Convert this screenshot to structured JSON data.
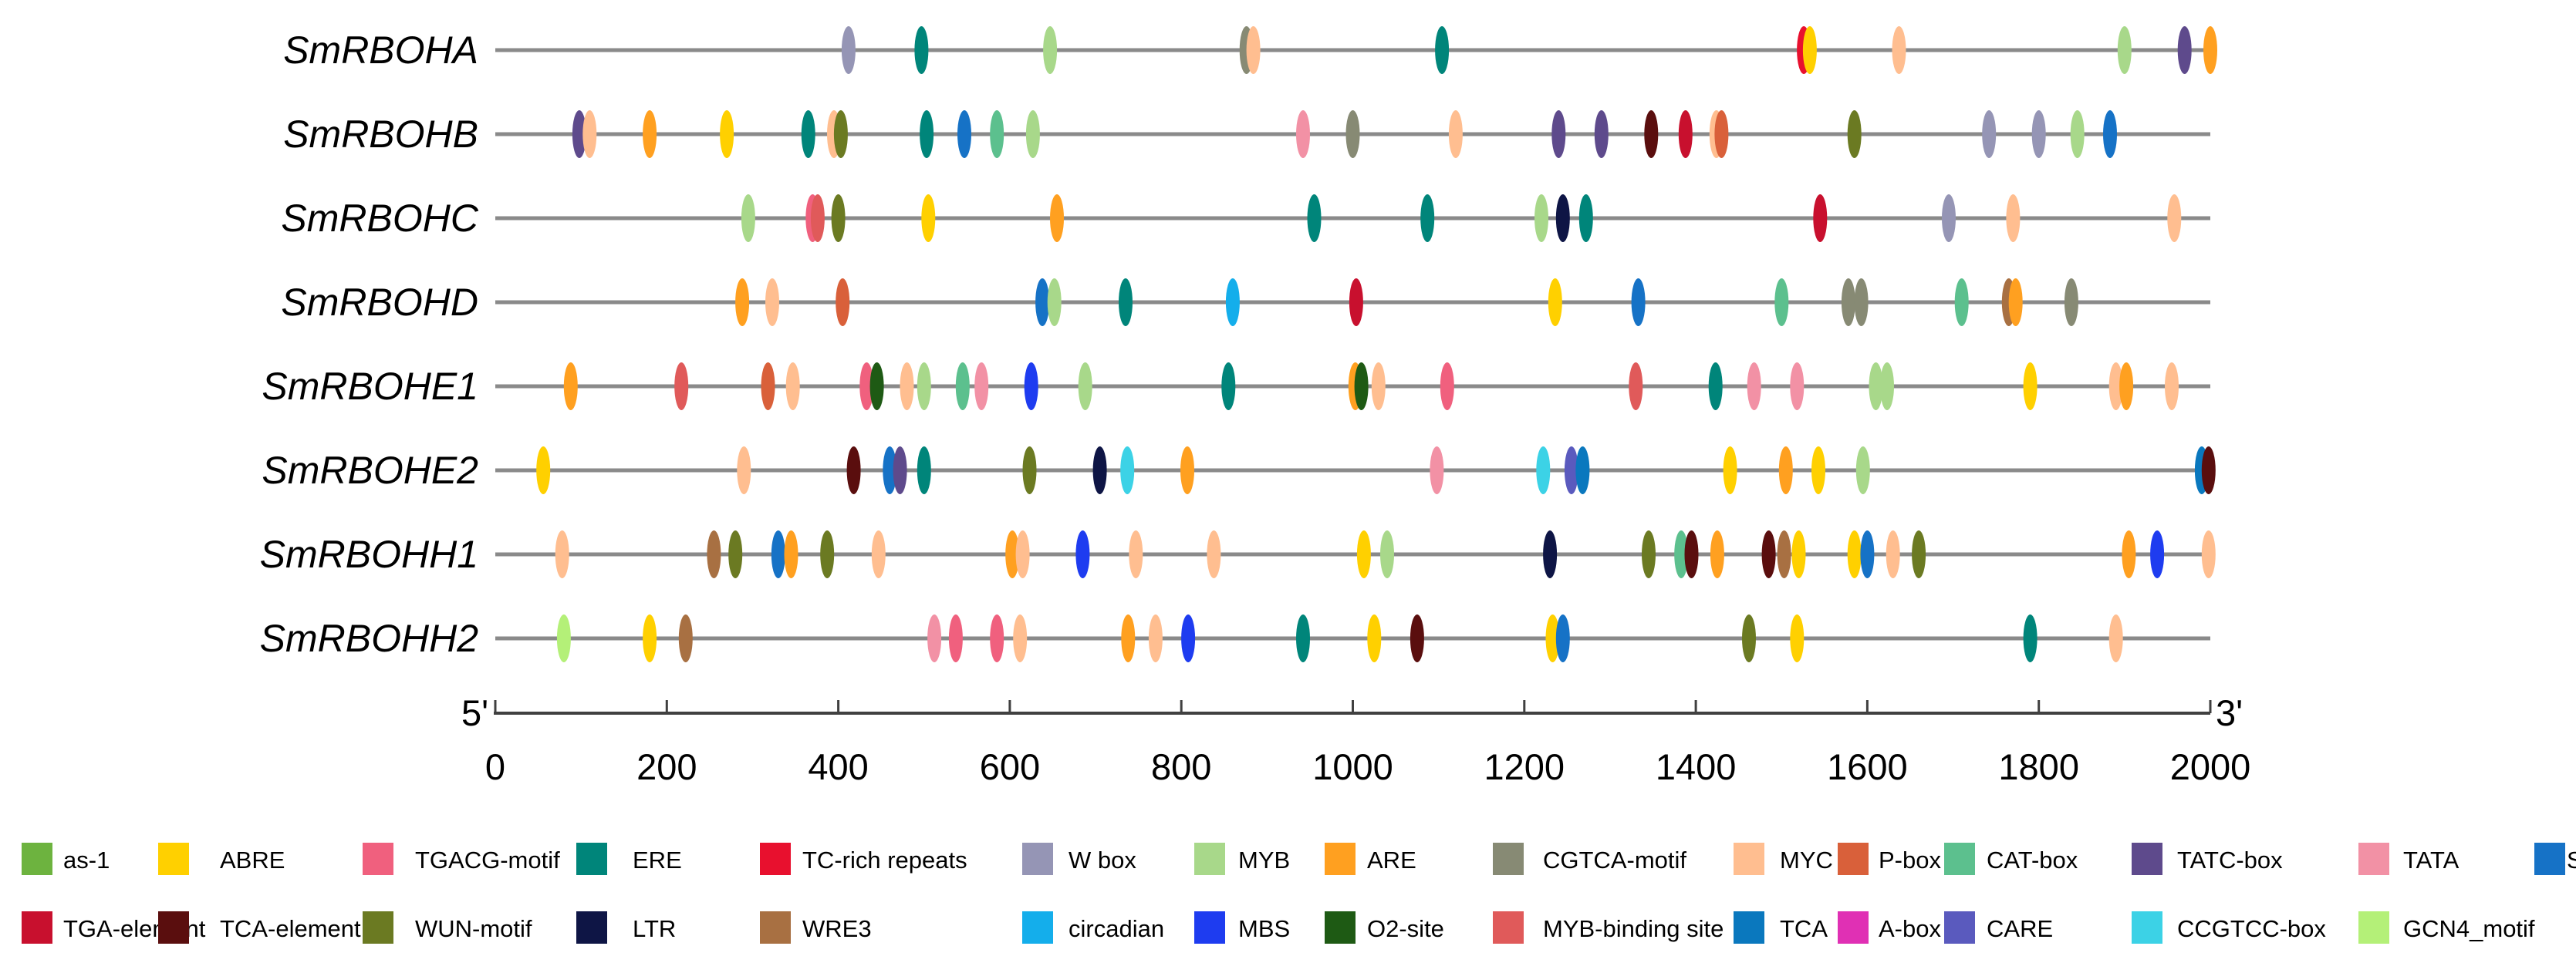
{
  "chart_data": {
    "type": "scatter",
    "title": "",
    "xlabel": "",
    "ylabel": "",
    "xlim": [
      0,
      2000
    ],
    "xticks": [
      0,
      200,
      400,
      600,
      800,
      1000,
      1200,
      1400,
      1600,
      1800,
      2000
    ],
    "end_labels": {
      "start": "5'",
      "end": "3'"
    },
    "genes": [
      "SmRBOHA",
      "SmRBOHB",
      "SmRBOHC",
      "SmRBOHD",
      "SmRBOHE1",
      "SmRBOHE2",
      "SmRBOHH1",
      "SmRBOHH2"
    ],
    "elements": [
      {
        "name": "as-1",
        "color": "#6DB33F"
      },
      {
        "name": "ABRE",
        "color": "#FFD000"
      },
      {
        "name": "TGACG-motif",
        "color": "#F0607E"
      },
      {
        "name": "ERE",
        "color": "#00857A"
      },
      {
        "name": "TC-rich repeats",
        "color": "#E8102E"
      },
      {
        "name": "W box",
        "color": "#9595B5"
      },
      {
        "name": "MYB",
        "color": "#A8D88A"
      },
      {
        "name": "ARE",
        "color": "#FFA020"
      },
      {
        "name": "CGTCA-motif",
        "color": "#878A74"
      },
      {
        "name": "MYC",
        "color": "#FFBE90"
      },
      {
        "name": "P-box",
        "color": "#D9603A"
      },
      {
        "name": "CAT-box",
        "color": "#5CC08E"
      },
      {
        "name": "TATC-box",
        "color": "#5E4A8C"
      },
      {
        "name": "TATA",
        "color": "#F291A5"
      },
      {
        "name": "STRE",
        "color": "#1672C6"
      },
      {
        "name": "TGA-element",
        "color": "#C8102E"
      },
      {
        "name": "TCA-element",
        "color": "#5A0E0E"
      },
      {
        "name": "WUN-motif",
        "color": "#6B7A22"
      },
      {
        "name": "LTR",
        "color": "#0E1545"
      },
      {
        "name": "WRE3",
        "color": "#A87042"
      },
      {
        "name": "circadian",
        "color": "#14AEEB"
      },
      {
        "name": "MBS",
        "color": "#1E3CF0"
      },
      {
        "name": "O2-site",
        "color": "#1E5A14"
      },
      {
        "name": "MYB-binding site",
        "color": "#E05A5A"
      },
      {
        "name": "TCA",
        "color": "#0A78BE"
      },
      {
        "name": "A-box",
        "color": "#E030B4"
      },
      {
        "name": "CARE",
        "color": "#5A5ABE"
      },
      {
        "name": "CCGTCC-box",
        "color": "#3CD2E6"
      },
      {
        "name": "GCN4_motif",
        "color": "#B4F078"
      }
    ],
    "series": [
      {
        "name": "SmRBOHA",
        "sites": [
          {
            "x": 412,
            "el": "W box"
          },
          {
            "x": 497,
            "el": "ERE"
          },
          {
            "x": 647,
            "el": "MYB"
          },
          {
            "x": 876,
            "el": "CGTCA-motif"
          },
          {
            "x": 884,
            "el": "MYC"
          },
          {
            "x": 1104,
            "el": "ERE"
          },
          {
            "x": 1526,
            "el": "TC-rich repeats"
          },
          {
            "x": 1533,
            "el": "ABRE"
          },
          {
            "x": 1637,
            "el": "MYC"
          },
          {
            "x": 1900,
            "el": "MYB"
          },
          {
            "x": 1970,
            "el": "TATC-box"
          },
          {
            "x": 2000,
            "el": "ARE"
          }
        ]
      },
      {
        "name": "SmRBOHB",
        "sites": [
          {
            "x": 98,
            "el": "TATC-box"
          },
          {
            "x": 110,
            "el": "MYC"
          },
          {
            "x": 180,
            "el": "ARE"
          },
          {
            "x": 270,
            "el": "ABRE"
          },
          {
            "x": 365,
            "el": "ERE"
          },
          {
            "x": 395,
            "el": "MYC"
          },
          {
            "x": 403,
            "el": "WUN-motif"
          },
          {
            "x": 503,
            "el": "ERE"
          },
          {
            "x": 547,
            "el": "STRE"
          },
          {
            "x": 585,
            "el": "CAT-box"
          },
          {
            "x": 627,
            "el": "MYB"
          },
          {
            "x": 942,
            "el": "TATA"
          },
          {
            "x": 1000,
            "el": "CGTCA-motif"
          },
          {
            "x": 1120,
            "el": "MYC"
          },
          {
            "x": 1240,
            "el": "TATC-box"
          },
          {
            "x": 1290,
            "el": "TATC-box"
          },
          {
            "x": 1348,
            "el": "TCA-element"
          },
          {
            "x": 1388,
            "el": "TGA-element"
          },
          {
            "x": 1424,
            "el": "MYC"
          },
          {
            "x": 1430,
            "el": "P-box"
          },
          {
            "x": 1585,
            "el": "WUN-motif"
          },
          {
            "x": 1742,
            "el": "W box"
          },
          {
            "x": 1800,
            "el": "W box"
          },
          {
            "x": 1845,
            "el": "MYB"
          },
          {
            "x": 1883,
            "el": "STRE"
          }
        ]
      },
      {
        "name": "SmRBOHC",
        "sites": [
          {
            "x": 295,
            "el": "MYB"
          },
          {
            "x": 370,
            "el": "TGACG-motif"
          },
          {
            "x": 376,
            "el": "MYB-binding site"
          },
          {
            "x": 400,
            "el": "WUN-motif"
          },
          {
            "x": 505,
            "el": "ABRE"
          },
          {
            "x": 655,
            "el": "ARE"
          },
          {
            "x": 955,
            "el": "ERE"
          },
          {
            "x": 1087,
            "el": "ERE"
          },
          {
            "x": 1220,
            "el": "MYB"
          },
          {
            "x": 1245,
            "el": "LTR"
          },
          {
            "x": 1272,
            "el": "ERE"
          },
          {
            "x": 1545,
            "el": "TGA-element"
          },
          {
            "x": 1695,
            "el": "W box"
          },
          {
            "x": 1770,
            "el": "MYC"
          },
          {
            "x": 1958,
            "el": "MYC"
          }
        ]
      },
      {
        "name": "SmRBOHD",
        "sites": [
          {
            "x": 288,
            "el": "ARE"
          },
          {
            "x": 323,
            "el": "MYC"
          },
          {
            "x": 405,
            "el": "P-box"
          },
          {
            "x": 638,
            "el": "STRE"
          },
          {
            "x": 652,
            "el": "MYB"
          },
          {
            "x": 735,
            "el": "ERE"
          },
          {
            "x": 860,
            "el": "circadian"
          },
          {
            "x": 1004,
            "el": "TGA-element"
          },
          {
            "x": 1236,
            "el": "ABRE"
          },
          {
            "x": 1333,
            "el": "STRE"
          },
          {
            "x": 1500,
            "el": "CAT-box"
          },
          {
            "x": 1578,
            "el": "CGTCA-motif"
          },
          {
            "x": 1593,
            "el": "CGTCA-motif"
          },
          {
            "x": 1710,
            "el": "CAT-box"
          },
          {
            "x": 1765,
            "el": "WRE3"
          },
          {
            "x": 1773,
            "el": "ARE"
          },
          {
            "x": 1838,
            "el": "CGTCA-motif"
          }
        ]
      },
      {
        "name": "SmRBOHE1",
        "sites": [
          {
            "x": 88,
            "el": "ARE"
          },
          {
            "x": 217,
            "el": "MYB-binding site"
          },
          {
            "x": 318,
            "el": "P-box"
          },
          {
            "x": 347,
            "el": "MYC"
          },
          {
            "x": 433,
            "el": "TGACG-motif"
          },
          {
            "x": 445,
            "el": "O2-site"
          },
          {
            "x": 480,
            "el": "MYC"
          },
          {
            "x": 500,
            "el": "MYB"
          },
          {
            "x": 545,
            "el": "CAT-box"
          },
          {
            "x": 567,
            "el": "TATA"
          },
          {
            "x": 625,
            "el": "MBS"
          },
          {
            "x": 688,
            "el": "MYB"
          },
          {
            "x": 855,
            "el": "ERE"
          },
          {
            "x": 1003,
            "el": "ARE"
          },
          {
            "x": 1010,
            "el": "O2-site"
          },
          {
            "x": 1030,
            "el": "MYC"
          },
          {
            "x": 1110,
            "el": "TGACG-motif"
          },
          {
            "x": 1330,
            "el": "MYB-binding site"
          },
          {
            "x": 1423,
            "el": "ERE"
          },
          {
            "x": 1468,
            "el": "TATA"
          },
          {
            "x": 1518,
            "el": "TATA"
          },
          {
            "x": 1610,
            "el": "MYB"
          },
          {
            "x": 1623,
            "el": "MYB"
          },
          {
            "x": 1790,
            "el": "ABRE"
          },
          {
            "x": 1890,
            "el": "MYC"
          },
          {
            "x": 1902,
            "el": "ARE"
          },
          {
            "x": 1955,
            "el": "MYC"
          }
        ]
      },
      {
        "name": "SmRBOHE2",
        "sites": [
          {
            "x": 56,
            "el": "ABRE"
          },
          {
            "x": 290,
            "el": "MYC"
          },
          {
            "x": 418,
            "el": "TCA-element"
          },
          {
            "x": 460,
            "el": "STRE"
          },
          {
            "x": 472,
            "el": "TATC-box"
          },
          {
            "x": 500,
            "el": "ERE"
          },
          {
            "x": 623,
            "el": "WUN-motif"
          },
          {
            "x": 705,
            "el": "LTR"
          },
          {
            "x": 737,
            "el": "CCGTCC-box"
          },
          {
            "x": 807,
            "el": "ARE"
          },
          {
            "x": 1098,
            "el": "TATA"
          },
          {
            "x": 1222,
            "el": "CCGTCC-box"
          },
          {
            "x": 1255,
            "el": "CARE"
          },
          {
            "x": 1268,
            "el": "TCA"
          },
          {
            "x": 1440,
            "el": "ABRE"
          },
          {
            "x": 1505,
            "el": "ARE"
          },
          {
            "x": 1543,
            "el": "ABRE"
          },
          {
            "x": 1595,
            "el": "MYB"
          },
          {
            "x": 1990,
            "el": "TCA"
          },
          {
            "x": 1998,
            "el": "TCA-element"
          }
        ]
      },
      {
        "name": "SmRBOHH1",
        "sites": [
          {
            "x": 78,
            "el": "MYC"
          },
          {
            "x": 255,
            "el": "WRE3"
          },
          {
            "x": 280,
            "el": "WUN-motif"
          },
          {
            "x": 330,
            "el": "STRE"
          },
          {
            "x": 345,
            "el": "ARE"
          },
          {
            "x": 387,
            "el": "WUN-motif"
          },
          {
            "x": 447,
            "el": "MYC"
          },
          {
            "x": 603,
            "el": "ARE"
          },
          {
            "x": 615,
            "el": "MYC"
          },
          {
            "x": 685,
            "el": "MBS"
          },
          {
            "x": 747,
            "el": "MYC"
          },
          {
            "x": 838,
            "el": "MYC"
          },
          {
            "x": 1013,
            "el": "ABRE"
          },
          {
            "x": 1040,
            "el": "MYB"
          },
          {
            "x": 1230,
            "el": "LTR"
          },
          {
            "x": 1345,
            "el": "WUN-motif"
          },
          {
            "x": 1383,
            "el": "CAT-box"
          },
          {
            "x": 1395,
            "el": "TCA-element"
          },
          {
            "x": 1425,
            "el": "ARE"
          },
          {
            "x": 1485,
            "el": "TCA-element"
          },
          {
            "x": 1503,
            "el": "WRE3"
          },
          {
            "x": 1520,
            "el": "ABRE"
          },
          {
            "x": 1585,
            "el": "ABRE"
          },
          {
            "x": 1600,
            "el": "STRE"
          },
          {
            "x": 1630,
            "el": "MYC"
          },
          {
            "x": 1660,
            "el": "WUN-motif"
          },
          {
            "x": 1905,
            "el": "ARE"
          },
          {
            "x": 1938,
            "el": "MBS"
          },
          {
            "x": 1998,
            "el": "MYC"
          }
        ]
      },
      {
        "name": "SmRBOHH2",
        "sites": [
          {
            "x": 80,
            "el": "GCN4_motif"
          },
          {
            "x": 180,
            "el": "ABRE"
          },
          {
            "x": 222,
            "el": "WRE3"
          },
          {
            "x": 512,
            "el": "TATA"
          },
          {
            "x": 537,
            "el": "TGACG-motif"
          },
          {
            "x": 585,
            "el": "TGACG-motif"
          },
          {
            "x": 612,
            "el": "MYC"
          },
          {
            "x": 738,
            "el": "ARE"
          },
          {
            "x": 770,
            "el": "MYC"
          },
          {
            "x": 808,
            "el": "MBS"
          },
          {
            "x": 942,
            "el": "ERE"
          },
          {
            "x": 1025,
            "el": "ABRE"
          },
          {
            "x": 1075,
            "el": "TCA-element"
          },
          {
            "x": 1233,
            "el": "ABRE"
          },
          {
            "x": 1245,
            "el": "STRE"
          },
          {
            "x": 1462,
            "el": "WUN-motif"
          },
          {
            "x": 1518,
            "el": "ABRE"
          },
          {
            "x": 1790,
            "el": "ERE"
          },
          {
            "x": 1890,
            "el": "MYC"
          }
        ]
      }
    ]
  }
}
